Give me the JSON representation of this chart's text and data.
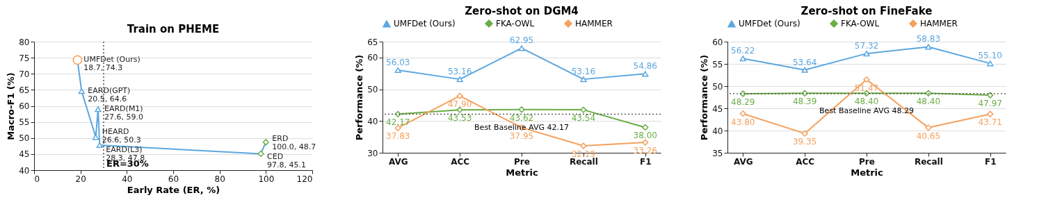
{
  "chart_data": [
    {
      "type": "line",
      "title": "Train on PHEME",
      "xlabel": "Early Rate (ER, %)",
      "ylabel": "Macro-F1 (%)",
      "xlim": [
        0,
        120
      ],
      "xticks": [
        0,
        20,
        40,
        60,
        80,
        100,
        120
      ],
      "ylim": [
        40,
        80
      ],
      "yticks": [
        40,
        45,
        50,
        55,
        60,
        65,
        70,
        75,
        80
      ],
      "grid": "y",
      "series": [
        {
          "color": "#5ba7e0",
          "marker": "none",
          "x": [
            18.7,
            20.5,
            26.6,
            27.6,
            28.3,
            97.8,
            100.0
          ],
          "values": [
            74.3,
            64.6,
            50.3,
            59.0,
            47.8,
            45.1,
            48.7
          ]
        },
        {
          "type": "scatter",
          "color": "#f4a15d",
          "marker": "circle",
          "x": [
            18.7
          ],
          "values": [
            74.3
          ]
        },
        {
          "type": "scatter",
          "color": "#5ba7e0",
          "marker": "triangle",
          "x": [
            20.5,
            26.6,
            27.6,
            28.3
          ],
          "values": [
            64.6,
            50.3,
            59.0,
            47.8
          ]
        },
        {
          "type": "scatter",
          "color": "#6aad45",
          "marker": "diamond",
          "x": [
            97.8,
            100.0
          ],
          "values": [
            45.1,
            48.7
          ]
        }
      ],
      "annotations": [
        {
          "text": "UMFDet (Ours)\n18.7, 74.3",
          "x": 18.7,
          "y": 74.3
        },
        {
          "text": "EARD(GPT)\n20.5, 64.6",
          "x": 20.5,
          "y": 64.6
        },
        {
          "text": "EARD(M1)\n27.6, 59.0",
          "x": 27.6,
          "y": 59.0
        },
        {
          "text": "HEARD\n26.6, 50.3",
          "x": 26.6,
          "y": 50.3
        },
        {
          "text": "EARD(L3)\n28.3, 47.8",
          "x": 28.3,
          "y": 47.8
        },
        {
          "text": "ERD\n100.0, 48.7",
          "x": 100.0,
          "y": 48.7
        },
        {
          "text": "CED\n97.8, 45.1",
          "x": 97.8,
          "y": 45.1
        }
      ],
      "ref_lines": [
        {
          "axis": "x",
          "value": 30,
          "label": "ER=30%",
          "line_style": "dotted",
          "color": "#222222"
        }
      ]
    },
    {
      "type": "line",
      "title": "Zero-shot on DGM4",
      "xlabel": "Metric",
      "ylabel": "Performance (%)",
      "categories": [
        "AVG",
        "ACC",
        "Pre",
        "Recall",
        "F1"
      ],
      "ylim": [
        30,
        65
      ],
      "yticks": [
        30,
        40,
        50,
        60,
        65
      ],
      "grid": "y",
      "legend": "top",
      "series": [
        {
          "name": "UMFDet (Ours)",
          "color": "#5ba7e0",
          "marker": "triangle",
          "values": [
            56.03,
            53.16,
            62.95,
            53.16,
            54.86
          ],
          "value_labels": [
            "56.03",
            "53.16",
            "62.95",
            "53.16",
            "54.86"
          ]
        },
        {
          "name": "FKA-OWL",
          "color": "#6aad45",
          "marker": "diamond",
          "values": [
            42.17,
            43.53,
            43.62,
            43.54,
            38.0
          ],
          "value_labels": [
            "42.17",
            "43.53",
            "43.62",
            "43.54",
            "38.00"
          ]
        },
        {
          "name": "HAMMER",
          "color": "#f4a15d",
          "marker": "diamond",
          "values": [
            37.83,
            47.9,
            37.95,
            32.19,
            33.26
          ],
          "value_labels": [
            "37.83",
            "47.90",
            "37.95",
            "32.19",
            "33.26"
          ]
        }
      ],
      "ref_lines": [
        {
          "axis": "y",
          "value": 42.17,
          "label": "Best Baseline AVG 42.17",
          "line_style": "dotted",
          "color": "#444444"
        }
      ]
    },
    {
      "type": "line",
      "title": "Zero-shot on FineFake",
      "xlabel": "Metric",
      "ylabel": "Performance (%)",
      "categories": [
        "AVG",
        "ACC",
        "Pre",
        "Recall",
        "F1"
      ],
      "ylim": [
        35,
        60
      ],
      "yticks": [
        35,
        40,
        45,
        50,
        55,
        60
      ],
      "grid": "y",
      "legend": "top",
      "series": [
        {
          "name": "UMFDet (Ours)",
          "color": "#5ba7e0",
          "marker": "triangle",
          "values": [
            56.22,
            53.64,
            57.32,
            58.83,
            55.1
          ],
          "value_labels": [
            "56.22",
            "53.64",
            "57.32",
            "58.83",
            "55.10"
          ]
        },
        {
          "name": "FKA-OWL",
          "color": "#6aad45",
          "marker": "diamond",
          "values": [
            48.29,
            48.39,
            48.4,
            48.4,
            47.97
          ],
          "value_labels": [
            "48.29",
            "48.39",
            "48.40",
            "48.40",
            "47.97"
          ]
        },
        {
          "name": "HAMMER",
          "color": "#f4a15d",
          "marker": "diamond",
          "values": [
            43.8,
            39.35,
            51.47,
            40.65,
            43.71
          ],
          "value_labels": [
            "43.80",
            "39.35",
            "51.47",
            "40.65",
            "43.71"
          ]
        }
      ],
      "ref_lines": [
        {
          "axis": "y",
          "value": 48.29,
          "label": "Best Baseline AVG 48.29",
          "line_style": "dotted",
          "color": "#444444"
        }
      ]
    }
  ]
}
